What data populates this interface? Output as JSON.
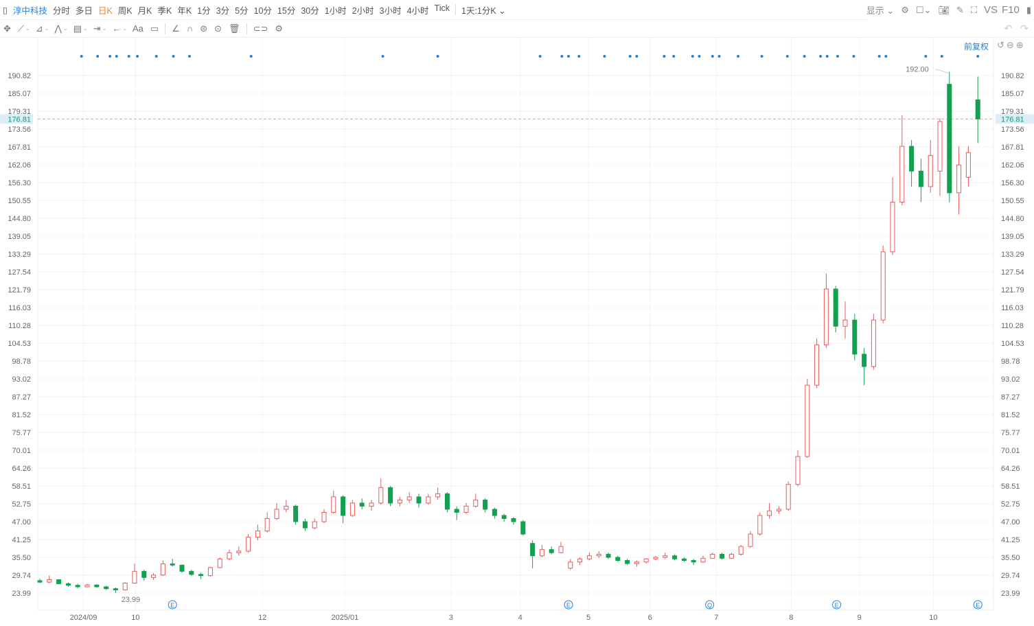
{
  "toolbar": {
    "stock_name": "淳中科技",
    "periods": [
      "分时",
      "多日",
      "日K",
      "周K",
      "月K",
      "季K",
      "年K",
      "1分",
      "3分",
      "5分",
      "10分",
      "15分",
      "30分",
      "1小时",
      "2小时",
      "3小时",
      "4小时",
      "Tick"
    ],
    "active_period": "日K",
    "combo": "1天:1分K",
    "display": "显示",
    "vs": "VS",
    "f10": "F10",
    "tools": [
      "move-icon",
      "line-icon",
      "polyline-icon",
      "wave-icon",
      "fib-icon",
      "measure-icon",
      "arrow-icon",
      "text-icon",
      "comment-icon",
      "angle-icon",
      "magnet-icon",
      "hide-icon",
      "eye-icon",
      "trash-icon",
      "link-icon",
      "settings-icon"
    ],
    "text_tool": "Aa"
  },
  "adjust": "前复权",
  "chart_data": {
    "type": "candlestick",
    "title": "",
    "y_ticks": [
      "190.82",
      "185.07",
      "179.31",
      "173.56",
      "167.81",
      "162.06",
      "156.30",
      "150.55",
      "144.80",
      "139.05",
      "133.29",
      "127.54",
      "121.79",
      "116.03",
      "110.28",
      "104.53",
      "98.78",
      "93.02",
      "87.27",
      "81.52",
      "75.77",
      "70.01",
      "64.26",
      "58.51",
      "52.75",
      "47.00",
      "41.25",
      "35.50",
      "29.74",
      "23.99"
    ],
    "ylim": [
      23.99,
      190.82
    ],
    "x_labels": [
      {
        "label": "2024/09",
        "at": 4.6
      },
      {
        "label": "10",
        "at": 10.1
      },
      {
        "label": "12",
        "at": 23.5
      },
      {
        "label": "2025/01",
        "at": 32.2
      },
      {
        "label": "3",
        "at": 43.4
      },
      {
        "label": "4",
        "at": 50.7
      },
      {
        "label": "5",
        "at": 57.9
      },
      {
        "label": "6",
        "at": 64.4
      },
      {
        "label": "7",
        "at": 71.4
      },
      {
        "label": "8",
        "at": 79.3
      },
      {
        "label": "9",
        "at": 86.5
      },
      {
        "label": "10",
        "at": 94.3
      }
    ],
    "current_price": "176.81",
    "max_label": {
      "value": "192.00",
      "at": 96
    },
    "min_label": {
      "value": "23.99",
      "at": 8
    },
    "up_color": "#e8595a",
    "down_color": "#12a150",
    "price_line_color": "#f4a070",
    "event_dots": [
      4.4,
      6.1,
      7.4,
      8.1,
      9.4,
      10.3,
      12.3,
      14.1,
      15.8,
      22.3,
      36.2,
      42,
      52.8,
      55.1,
      55.8,
      56.9,
      59.6,
      62.3,
      63,
      65.9,
      66.9,
      68.9,
      69.6,
      71,
      71.7,
      73.7,
      76.2,
      78.9,
      80.7,
      82.4,
      83.1,
      84.2,
      85.9,
      88.6,
      89.3,
      93.5,
      95.2,
      99
    ],
    "event_badges": [
      {
        "at": 14,
        "label": "E"
      },
      {
        "at": 55.8,
        "label": "E"
      },
      {
        "at": 70.7,
        "label": "Q"
      },
      {
        "at": 84.1,
        "label": "E"
      },
      {
        "at": 99,
        "label": "E"
      }
    ],
    "ohlc": [
      [
        28,
        28.6,
        27.2,
        27.5
      ],
      [
        27.5,
        29.6,
        27.1,
        28.3
      ],
      [
        28.3,
        28.5,
        26.8,
        27
      ],
      [
        27,
        27.4,
        26,
        26.5
      ],
      [
        26.5,
        27,
        25.5,
        26
      ],
      [
        26,
        27,
        25.8,
        26.6
      ],
      [
        26.6,
        26.8,
        25.7,
        26
      ],
      [
        26,
        26.3,
        25,
        25.4
      ],
      [
        25.4,
        25.8,
        24,
        25
      ],
      [
        25,
        27.5,
        24.8,
        27.2
      ],
      [
        27.2,
        33.5,
        27,
        31
      ],
      [
        31,
        31.5,
        28,
        29
      ],
      [
        29,
        30.5,
        28.2,
        29.8
      ],
      [
        29.8,
        34.5,
        29.5,
        33.4
      ],
      [
        33.4,
        35,
        32.5,
        33
      ],
      [
        33,
        33.2,
        30.5,
        31
      ],
      [
        31,
        31.5,
        29.5,
        30
      ],
      [
        30,
        30.5,
        28.5,
        29.6
      ],
      [
        29.6,
        32.5,
        29.3,
        32.2
      ],
      [
        32.2,
        35.5,
        32,
        35
      ],
      [
        35,
        38,
        34.5,
        37
      ],
      [
        37,
        39,
        36,
        37.5
      ],
      [
        37.5,
        43,
        37,
        42
      ],
      [
        42,
        46,
        41,
        44
      ],
      [
        44,
        50,
        43.5,
        48
      ],
      [
        48,
        53,
        47.5,
        51
      ],
      [
        51,
        54,
        50,
        52
      ],
      [
        52,
        52.5,
        46,
        47
      ],
      [
        47,
        48,
        44,
        45
      ],
      [
        45,
        48,
        44.5,
        47
      ],
      [
        47,
        51,
        46.5,
        50
      ],
      [
        50,
        57,
        49.5,
        55
      ],
      [
        55,
        55.5,
        46.5,
        49
      ],
      [
        49,
        54,
        48.5,
        53
      ],
      [
        53,
        54.5,
        51,
        52
      ],
      [
        52,
        54,
        50.5,
        53
      ],
      [
        53,
        61,
        52.5,
        58
      ],
      [
        58,
        58.5,
        52,
        53
      ],
      [
        53,
        55,
        52,
        54
      ],
      [
        54,
        56.5,
        53,
        55
      ],
      [
        55,
        56,
        51.5,
        53
      ],
      [
        53,
        56,
        52.5,
        55
      ],
      [
        55,
        58,
        54,
        56
      ],
      [
        56,
        56.5,
        50,
        51
      ],
      [
        51,
        52,
        47.5,
        50
      ],
      [
        50,
        53,
        49.5,
        52
      ],
      [
        52,
        56,
        51.5,
        54
      ],
      [
        54,
        54.5,
        50,
        51
      ],
      [
        51,
        51.5,
        48,
        49
      ],
      [
        49,
        49.5,
        47,
        48
      ],
      [
        48,
        48.5,
        46,
        47
      ],
      [
        47,
        47.5,
        42.5,
        43
      ],
      [
        40,
        41,
        32,
        36
      ],
      [
        36,
        39.5,
        35.5,
        38
      ],
      [
        38,
        39,
        36.5,
        37
      ],
      [
        37,
        40.5,
        36.8,
        39
      ],
      [
        32,
        35,
        31.5,
        34
      ],
      [
        34,
        35.5,
        33,
        35
      ],
      [
        35,
        37,
        34.5,
        36
      ],
      [
        36,
        37.5,
        35.2,
        36.5
      ],
      [
        36.5,
        37,
        35,
        35.5
      ],
      [
        35.5,
        36,
        34,
        34.5
      ],
      [
        34.5,
        35,
        33,
        33.5
      ],
      [
        33.5,
        34.5,
        32.5,
        34
      ],
      [
        34,
        35.2,
        33.5,
        35
      ],
      [
        35,
        36,
        34.5,
        35.5
      ],
      [
        35.5,
        37,
        35,
        36
      ],
      [
        36,
        36.5,
        34.5,
        35
      ],
      [
        35,
        35.5,
        34,
        34.5
      ],
      [
        34.5,
        35,
        33,
        34
      ],
      [
        34,
        36,
        33.8,
        35.2
      ],
      [
        35.2,
        37,
        35,
        36.5
      ],
      [
        36.5,
        37,
        34.8,
        35.2
      ],
      [
        35.2,
        37,
        35,
        36.5
      ],
      [
        36.5,
        39.5,
        36,
        39
      ],
      [
        39,
        44,
        38.5,
        43
      ],
      [
        43,
        50,
        42.5,
        49
      ],
      [
        49,
        53,
        48,
        50.5
      ],
      [
        50.5,
        52,
        49.5,
        51
      ],
      [
        51,
        60,
        50.5,
        59
      ],
      [
        59,
        70,
        58.5,
        68
      ],
      [
        68,
        93,
        67.5,
        91
      ],
      [
        91,
        106,
        90,
        104
      ],
      [
        104,
        127,
        103,
        122
      ],
      [
        122,
        123,
        108,
        110
      ],
      [
        110,
        118,
        106,
        112
      ],
      [
        112,
        114,
        99,
        101
      ],
      [
        101,
        103,
        91,
        97
      ],
      [
        97,
        114,
        96,
        112
      ],
      [
        112,
        136,
        111,
        134
      ],
      [
        134,
        158,
        133,
        150
      ],
      [
        150,
        178,
        149,
        168
      ],
      [
        168,
        170,
        155,
        160
      ],
      [
        160,
        164,
        150,
        155
      ],
      [
        155,
        170,
        153,
        165
      ],
      [
        160,
        177,
        152,
        176
      ],
      [
        188,
        192,
        150,
        153
      ],
      [
        153,
        168,
        146,
        162
      ],
      [
        158,
        168,
        155,
        166
      ],
      [
        183,
        190.5,
        169,
        176.81
      ]
    ]
  }
}
